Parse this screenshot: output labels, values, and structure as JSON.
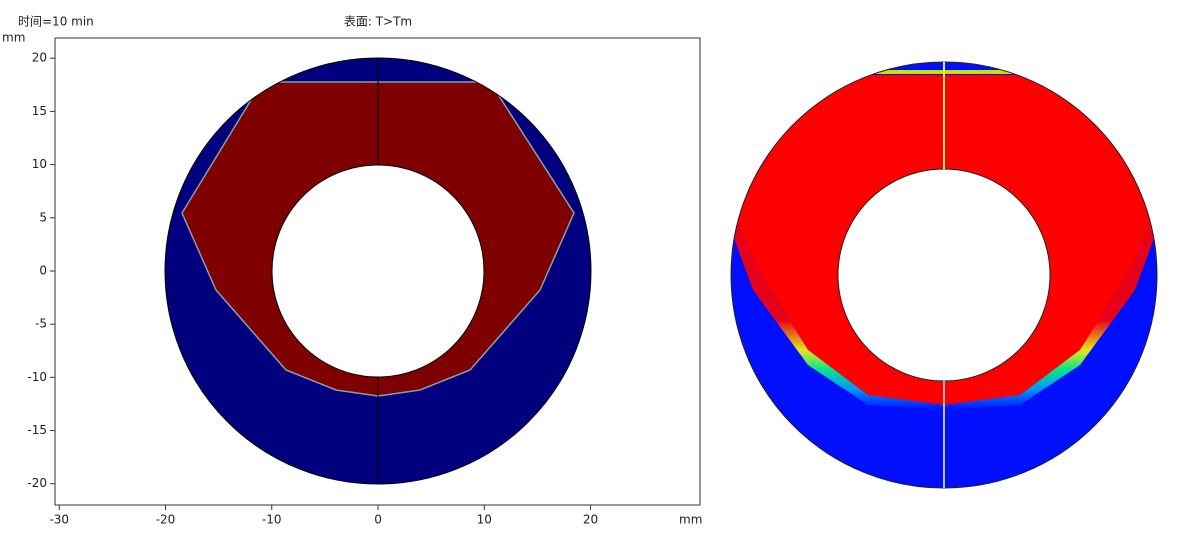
{
  "chart_data": {
    "type": "surface",
    "title": "表面: T>Tm",
    "subtitle": "时间=10 min",
    "xlabel": "mm",
    "ylabel": "mm",
    "xlim": [
      -30.4,
      30.3
    ],
    "ylim": [
      -22,
      21.9
    ],
    "xticks": [
      -30,
      -20,
      -10,
      0,
      10,
      20
    ],
    "yticks": [
      -20,
      -15,
      -10,
      -5,
      0,
      5,
      10,
      15,
      20
    ]
  }
}
